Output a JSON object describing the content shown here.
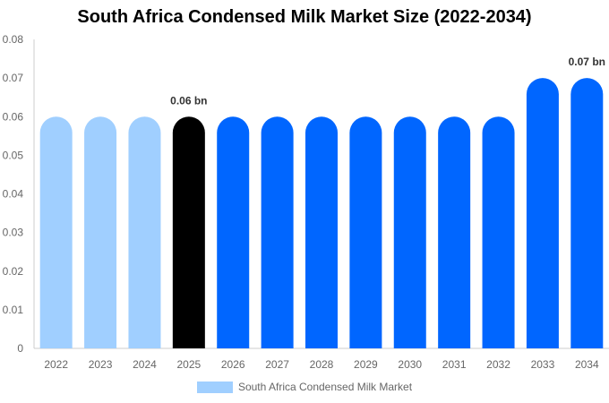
{
  "chart_data": {
    "type": "bar",
    "title": "South Africa Condensed Milk Market Size (2022-2034)",
    "categories": [
      "2022",
      "2023",
      "2024",
      "2025",
      "2026",
      "2027",
      "2028",
      "2029",
      "2030",
      "2031",
      "2032",
      "2033",
      "2034"
    ],
    "series": [
      {
        "name": "South Africa Condensed Milk Market",
        "values": [
          0.06,
          0.06,
          0.06,
          0.06,
          0.06,
          0.06,
          0.06,
          0.06,
          0.06,
          0.06,
          0.06,
          0.07,
          0.07
        ]
      }
    ],
    "bar_colors": [
      "#a0cfff",
      "#a0cfff",
      "#a0cfff",
      "#000000",
      "#0066ff",
      "#0066ff",
      "#0066ff",
      "#0066ff",
      "#0066ff",
      "#0066ff",
      "#0066ff",
      "#0066ff",
      "#0066ff"
    ],
    "data_labels": [
      {
        "category": "2025",
        "text": "0.06 bn"
      },
      {
        "category": "2034",
        "text": "0.07 bn"
      }
    ],
    "y_ticks": [
      "0",
      "0.01",
      "0.02",
      "0.03",
      "0.04",
      "0.05",
      "0.06",
      "0.07",
      "0.08"
    ],
    "ylim": [
      0,
      0.08
    ],
    "xlabel": "",
    "ylabel": "",
    "grid": false,
    "legend": {
      "label": "South Africa Condensed Milk Market",
      "color": "#a0cfff",
      "position": "bottom"
    }
  }
}
